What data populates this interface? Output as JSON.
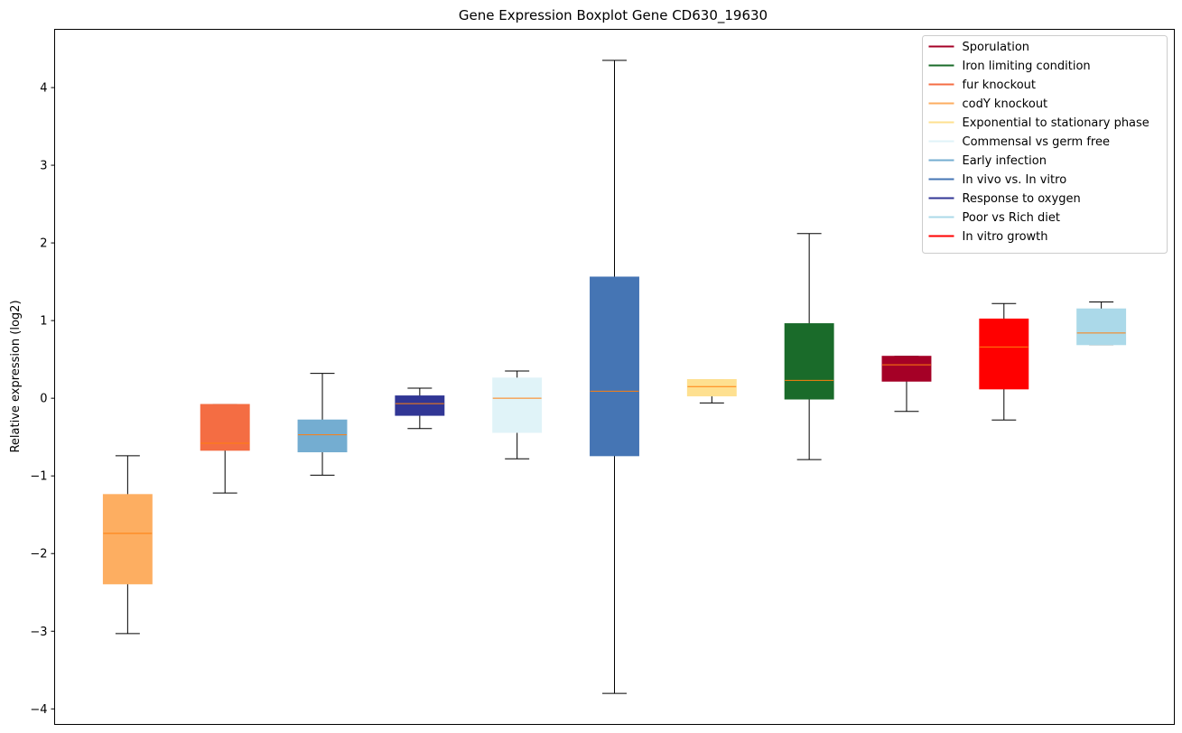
{
  "chart_data": {
    "type": "boxplot",
    "title": "Gene Expression Boxplot Gene CD630_19630",
    "xlabel": "",
    "ylabel": "Relative expression (log2)",
    "ylim": [
      -4.2,
      4.75
    ],
    "yticks": [
      -4,
      -3,
      -2,
      -1,
      0,
      1,
      2,
      3,
      4
    ],
    "ytick_labels": [
      "−4",
      "−3",
      "−2",
      "−1",
      "0",
      "1",
      "2",
      "3",
      "4"
    ],
    "grid": false,
    "legend_position": "top-right",
    "median_color": "#ff7f0e",
    "boxes": [
      {
        "name": "codY knockout",
        "color": "#fdae61",
        "whisker_low": -3.03,
        "q1": -2.39,
        "median": -1.74,
        "q3": -1.24,
        "whisker_high": -0.74
      },
      {
        "name": "fur knockout",
        "color": "#f46d43",
        "whisker_low": -1.22,
        "q1": -0.67,
        "median": -0.58,
        "q3": -0.08,
        "whisker_high": -0.08
      },
      {
        "name": "Early infection",
        "color": "#74add1",
        "whisker_low": -0.99,
        "q1": -0.69,
        "median": -0.47,
        "q3": -0.28,
        "whisker_high": 0.32
      },
      {
        "name": "Response to oxygen",
        "color": "#313695",
        "whisker_low": -0.39,
        "q1": -0.22,
        "median": -0.07,
        "q3": 0.03,
        "whisker_high": 0.13
      },
      {
        "name": "Commensal vs germ free",
        "color": "#e0f3f8",
        "whisker_low": -0.78,
        "q1": -0.44,
        "median": 0.0,
        "q3": 0.26,
        "whisker_high": 0.35
      },
      {
        "name": "In vivo vs. In vitro",
        "color": "#4575b4",
        "whisker_low": -3.8,
        "q1": -0.74,
        "median": 0.09,
        "q3": 1.56,
        "whisker_high": 4.35
      },
      {
        "name": "Exponential to stationary phase",
        "color": "#fee090",
        "whisker_low": -0.06,
        "q1": 0.03,
        "median": 0.15,
        "q3": 0.24,
        "whisker_high": 0.24
      },
      {
        "name": "Iron limiting condition",
        "color": "#1a6b2a",
        "whisker_low": -0.79,
        "q1": -0.01,
        "median": 0.23,
        "q3": 0.96,
        "whisker_high": 2.12
      },
      {
        "name": "Sporulation",
        "color": "#a50026",
        "whisker_low": -0.17,
        "q1": 0.22,
        "median": 0.43,
        "q3": 0.54,
        "whisker_high": 0.54
      },
      {
        "name": "In vitro growth",
        "color": "#ff0000",
        "whisker_low": -0.28,
        "q1": 0.12,
        "median": 0.66,
        "q3": 1.02,
        "whisker_high": 1.22
      },
      {
        "name": "Poor vs Rich diet",
        "color": "#abd9e9",
        "whisker_low": 0.69,
        "q1": 0.69,
        "median": 0.84,
        "q3": 1.15,
        "whisker_high": 1.24
      }
    ],
    "legend": [
      {
        "label": "Sporulation",
        "color": "#a50026"
      },
      {
        "label": "Iron limiting condition",
        "color": "#1a6b2a"
      },
      {
        "label": "fur knockout",
        "color": "#f46d43"
      },
      {
        "label": "codY knockout",
        "color": "#fdae61"
      },
      {
        "label": "Exponential to stationary phase",
        "color": "#fee090"
      },
      {
        "label": "Commensal vs germ free",
        "color": "#e0f3f8"
      },
      {
        "label": "Early infection",
        "color": "#74add1"
      },
      {
        "label": "In vivo vs. In vitro",
        "color": "#4575b4"
      },
      {
        "label": "Response to oxygen",
        "color": "#313695"
      },
      {
        "label": "Poor vs Rich diet",
        "color": "#abd9e9"
      },
      {
        "label": "In vitro growth",
        "color": "#ff0000"
      }
    ]
  }
}
